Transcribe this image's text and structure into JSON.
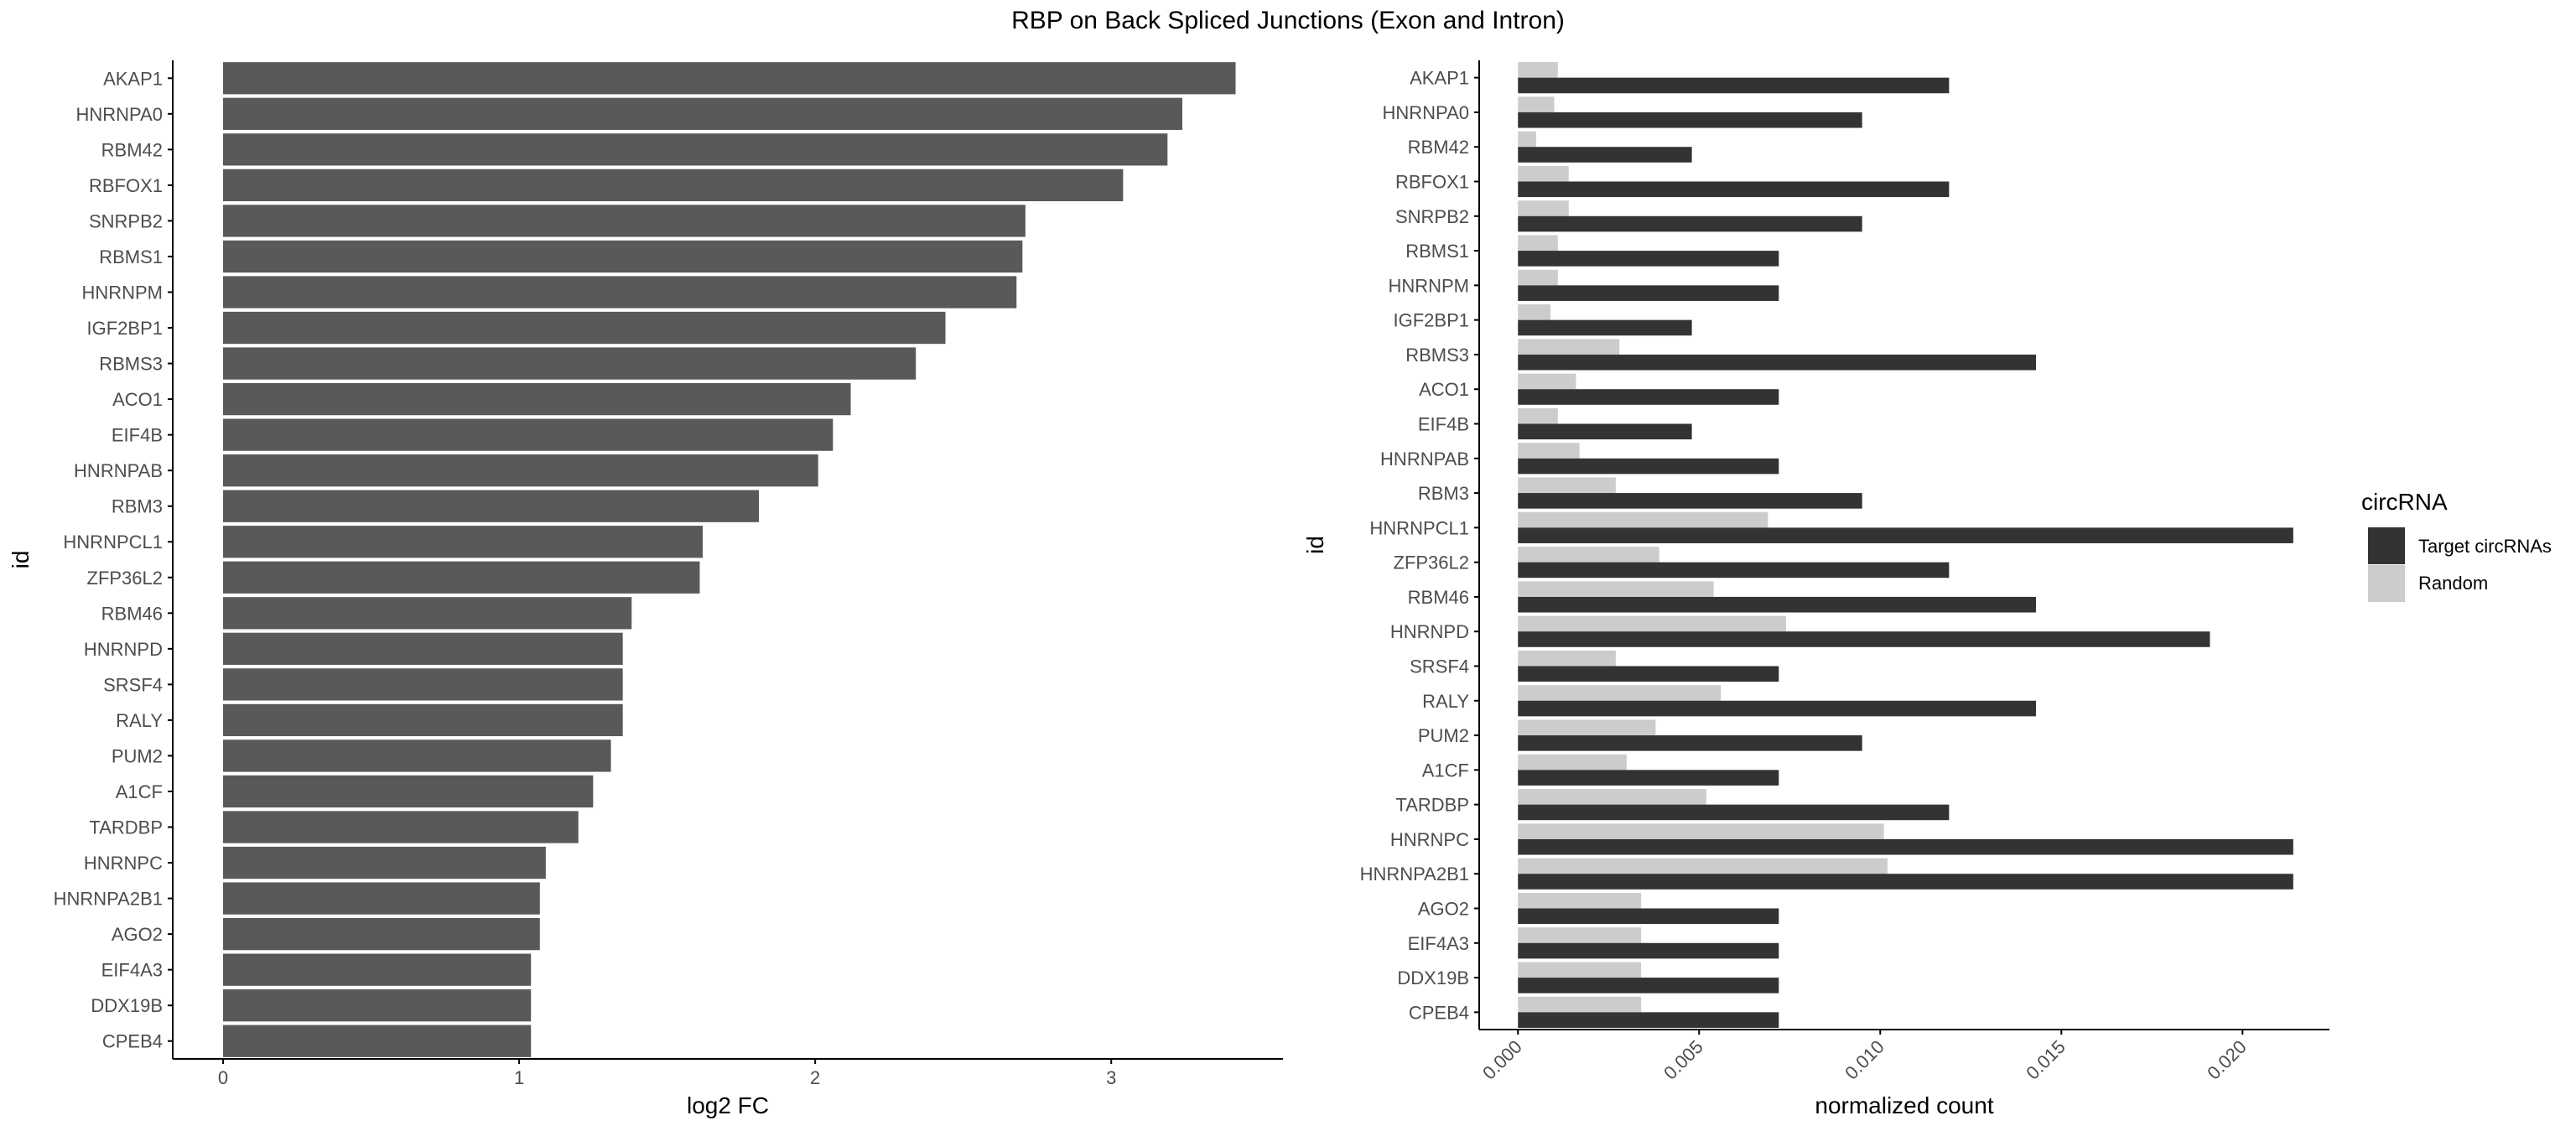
{
  "title": "RBP on Back Spliced Junctions (Exon and Intron)",
  "colors": {
    "bar_left": "#595959",
    "target": "#333333",
    "random": "#cccccc",
    "axis": "#000000",
    "tick_label": "#4d4d4d"
  },
  "chart_data": [
    {
      "type": "bar",
      "orientation": "horizontal",
      "xlabel": "log2 FC",
      "ylabel": "id",
      "xlim": [
        -0.17,
        3.58
      ],
      "xticks": [
        "0",
        "1",
        "2",
        "3"
      ],
      "grid": false,
      "categories": [
        "AKAP1",
        "HNRNPA0",
        "RBM42",
        "RBFOX1",
        "SNRPB2",
        "RBMS1",
        "HNRNPM",
        "IGF2BP1",
        "RBMS3",
        "ACO1",
        "EIF4B",
        "HNRNPAB",
        "RBM3",
        "HNRNPCL1",
        "ZFP36L2",
        "RBM46",
        "HNRNPD",
        "SRSF4",
        "RALY",
        "PUM2",
        "A1CF",
        "TARDBP",
        "HNRNPC",
        "HNRNPA2B1",
        "AGO2",
        "EIF4A3",
        "DDX19B",
        "CPEB4"
      ],
      "values": [
        3.42,
        3.24,
        3.19,
        3.04,
        2.71,
        2.7,
        2.68,
        2.44,
        2.34,
        2.12,
        2.06,
        2.01,
        1.81,
        1.62,
        1.61,
        1.38,
        1.35,
        1.35,
        1.35,
        1.31,
        1.25,
        1.2,
        1.09,
        1.07,
        1.07,
        1.04,
        1.04,
        1.04
      ]
    },
    {
      "type": "bar",
      "orientation": "horizontal",
      "xlabel": "normalized count",
      "ylabel": "id",
      "xlim": [
        -0.00107,
        0.0224
      ],
      "xticks": [
        "0.000",
        "0.005",
        "0.010",
        "0.015",
        "0.020"
      ],
      "grid": false,
      "categories": [
        "AKAP1",
        "HNRNPA0",
        "RBM42",
        "RBFOX1",
        "SNRPB2",
        "RBMS1",
        "HNRNPM",
        "IGF2BP1",
        "RBMS3",
        "ACO1",
        "EIF4B",
        "HNRNPAB",
        "RBM3",
        "HNRNPCL1",
        "ZFP36L2",
        "RBM46",
        "HNRNPD",
        "SRSF4",
        "RALY",
        "PUM2",
        "A1CF",
        "TARDBP",
        "HNRNPC",
        "HNRNPA2B1",
        "AGO2",
        "EIF4A3",
        "DDX19B",
        "CPEB4"
      ],
      "legend": {
        "title": "circRNA",
        "position": "right"
      },
      "series": [
        {
          "name": "Target circRNAs",
          "values": [
            0.0119,
            0.0095,
            0.0048,
            0.0119,
            0.0095,
            0.0072,
            0.0072,
            0.0048,
            0.0143,
            0.0072,
            0.0048,
            0.0072,
            0.0095,
            0.0214,
            0.0119,
            0.0143,
            0.0191,
            0.0072,
            0.0143,
            0.0095,
            0.0072,
            0.0119,
            0.0214,
            0.0214,
            0.0072,
            0.0072,
            0.0072,
            0.0072
          ]
        },
        {
          "name": "Random",
          "values": [
            0.0011,
            0.001,
            0.0005,
            0.0014,
            0.0014,
            0.0011,
            0.0011,
            0.0009,
            0.0028,
            0.0016,
            0.0011,
            0.0017,
            0.0027,
            0.0069,
            0.0039,
            0.0054,
            0.0074,
            0.0027,
            0.0056,
            0.0038,
            0.003,
            0.0052,
            0.0101,
            0.0102,
            0.0034,
            0.0034,
            0.0034,
            0.0034
          ]
        }
      ]
    }
  ]
}
